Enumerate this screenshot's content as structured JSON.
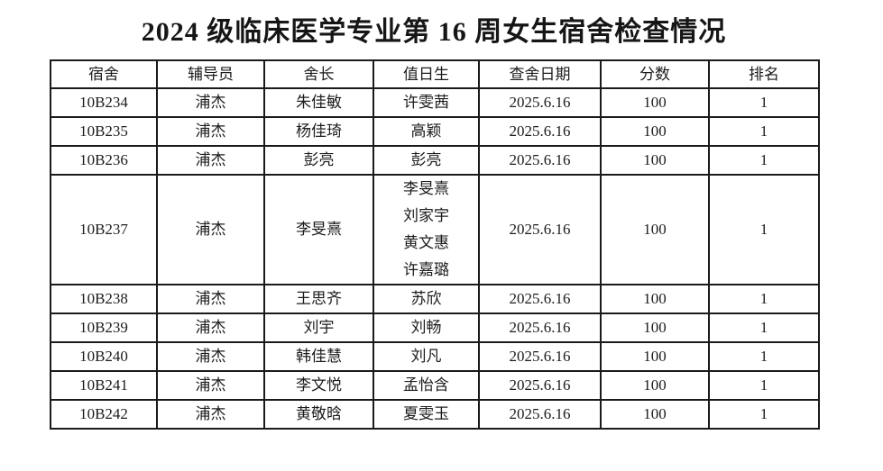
{
  "title": "2024 级临床医学专业第 16 周女生宿舍检查情况",
  "table": {
    "headers": [
      "宿舍",
      "辅导员",
      "舍长",
      "值日生",
      "查舍日期",
      "分数",
      "排名"
    ],
    "column_keys": [
      "dorm",
      "counselor",
      "leader",
      "duty",
      "date",
      "score",
      "rank"
    ],
    "rows": [
      {
        "dorm": "10B234",
        "counselor": "浦杰",
        "leader": "朱佳敏",
        "duty": [
          "许雯茜"
        ],
        "date": "2025.6.16",
        "score": "100",
        "rank": "1"
      },
      {
        "dorm": "10B235",
        "counselor": "浦杰",
        "leader": "杨佳琦",
        "duty": [
          "高颖"
        ],
        "date": "2025.6.16",
        "score": "100",
        "rank": "1"
      },
      {
        "dorm": "10B236",
        "counselor": "浦杰",
        "leader": "彭亮",
        "duty": [
          "彭亮"
        ],
        "date": "2025.6.16",
        "score": "100",
        "rank": "1"
      },
      {
        "dorm": "10B237",
        "counselor": "浦杰",
        "leader": "李旻熹",
        "duty": [
          "李旻熹",
          "刘家宇",
          "黄文惠",
          "许嘉璐"
        ],
        "date": "2025.6.16",
        "score": "100",
        "rank": "1"
      },
      {
        "dorm": "10B238",
        "counselor": "浦杰",
        "leader": "王思齐",
        "duty": [
          "苏欣"
        ],
        "date": "2025.6.16",
        "score": "100",
        "rank": "1"
      },
      {
        "dorm": "10B239",
        "counselor": "浦杰",
        "leader": "刘宇",
        "duty": [
          "刘畅"
        ],
        "date": "2025.6.16",
        "score": "100",
        "rank": "1"
      },
      {
        "dorm": "10B240",
        "counselor": "浦杰",
        "leader": "韩佳慧",
        "duty": [
          "刘凡"
        ],
        "date": "2025.6.16",
        "score": "100",
        "rank": "1"
      },
      {
        "dorm": "10B241",
        "counselor": "浦杰",
        "leader": "李文悦",
        "duty": [
          "孟怡含"
        ],
        "date": "2025.6.16",
        "score": "100",
        "rank": "1"
      },
      {
        "dorm": "10B242",
        "counselor": "浦杰",
        "leader": "黄敬晗",
        "duty": [
          "夏雯玉"
        ],
        "date": "2025.6.16",
        "score": "100",
        "rank": "1"
      }
    ]
  },
  "colors": {
    "background": "#ffffff",
    "border": "#1a1a1a",
    "text": "#1c1c1c"
  }
}
